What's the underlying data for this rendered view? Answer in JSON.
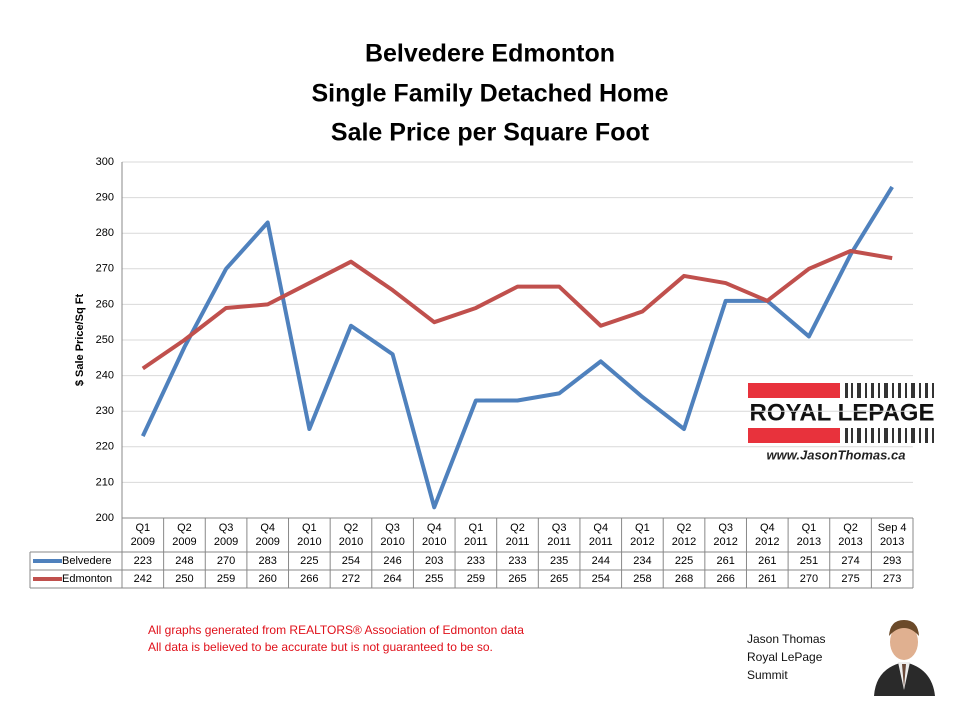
{
  "chart_data": {
    "type": "line",
    "title": [
      "Belvedere Edmonton",
      "Single Family Detached Home",
      "Sale Price per Square Foot"
    ],
    "y_label": "$ Sale Price/Sq Ft",
    "categories": [
      "Q1 2009",
      "Q2 2009",
      "Q3 2009",
      "Q4 2009",
      "Q1 2010",
      "Q2 2010",
      "Q3 2010",
      "Q4 2010",
      "Q1 2011",
      "Q2 2011",
      "Q3 2011",
      "Q4 2011",
      "Q1 2012",
      "Q2 2012",
      "Q3 2012",
      "Q4 2012",
      "Q1 2013",
      "Q2 2013",
      "Sep 4 2013"
    ],
    "series": [
      {
        "name": "Belvedere",
        "color": "#4f81bd",
        "values": [
          223,
          248,
          270,
          283,
          225,
          254,
          246,
          203,
          233,
          233,
          235,
          244,
          234,
          225,
          261,
          261,
          251,
          274,
          293
        ]
      },
      {
        "name": "Edmonton",
        "color": "#c0504d",
        "values": [
          242,
          250,
          259,
          260,
          266,
          272,
          264,
          255,
          259,
          265,
          265,
          254,
          258,
          268,
          266,
          261,
          270,
          275,
          273
        ]
      }
    ],
    "ylim": [
      200,
      300
    ],
    "yticks": [
      200,
      210,
      220,
      230,
      240,
      250,
      260,
      270,
      280,
      290,
      300
    ],
    "grid": true,
    "data_table": true
  },
  "branding": {
    "logo": "ROYAL LEPAGE",
    "website": "www.JasonThomas.ca"
  },
  "footer": {
    "notes": [
      "All graphs generated from REALTORS® Association of Edmonton data",
      "All data is believed to be accurate but is not guaranteed to be so."
    ],
    "agent": [
      "Jason Thomas",
      "Royal LePage",
      "Summit"
    ]
  }
}
